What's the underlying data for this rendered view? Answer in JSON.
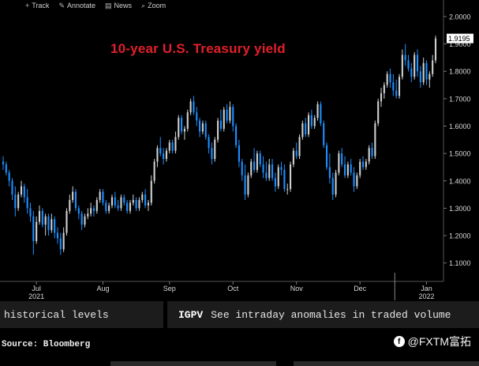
{
  "toolbar": {
    "items": [
      {
        "label": "Track",
        "icon": "plus-icon"
      },
      {
        "label": "Annotate",
        "icon": "pencil-icon"
      },
      {
        "label": "News",
        "icon": "news-icon"
      },
      {
        "label": "Zoom",
        "icon": "zoom-icon"
      }
    ]
  },
  "chart_data": {
    "type": "candlestick",
    "title": "10-year U.S. Treasury yield",
    "last_value_label": "1.9195",
    "ylim": [
      1.05,
      2.02
    ],
    "y_ticks": [
      "2.0000",
      "1.9000",
      "1.8000",
      "1.7000",
      "1.6000",
      "1.5000",
      "1.4000",
      "1.3000",
      "1.2000",
      "1.1000"
    ],
    "y_tick_values": [
      2.0,
      1.9,
      1.8,
      1.7,
      1.6,
      1.5,
      1.4,
      1.3,
      1.2,
      1.1
    ],
    "x_months": [
      {
        "label": "Jul",
        "year": "2021",
        "index": 11
      },
      {
        "label": "Aug",
        "index": 33
      },
      {
        "label": "Sep",
        "index": 55
      },
      {
        "label": "Oct",
        "index": 76
      },
      {
        "label": "Nov",
        "index": 97
      },
      {
        "label": "Dec",
        "index": 118
      },
      {
        "label": "Jan",
        "year": "2022",
        "index": 140
      }
    ],
    "x_dividers": [
      129
    ],
    "colors": {
      "up": "#cfcfcf",
      "down": "#1e8fff",
      "text_title": "#e0202a"
    },
    "ohlc": [
      [
        1.47,
        1.49,
        1.44,
        1.46
      ],
      [
        1.46,
        1.47,
        1.42,
        1.43
      ],
      [
        1.43,
        1.44,
        1.38,
        1.4
      ],
      [
        1.4,
        1.41,
        1.33,
        1.35
      ],
      [
        1.35,
        1.38,
        1.27,
        1.3
      ],
      [
        1.3,
        1.36,
        1.29,
        1.35
      ],
      [
        1.35,
        1.4,
        1.34,
        1.38
      ],
      [
        1.38,
        1.39,
        1.32,
        1.34
      ],
      [
        1.34,
        1.37,
        1.28,
        1.3
      ],
      [
        1.3,
        1.32,
        1.25,
        1.27
      ],
      [
        1.27,
        1.29,
        1.13,
        1.18
      ],
      [
        1.18,
        1.27,
        1.17,
        1.25
      ],
      [
        1.25,
        1.31,
        1.24,
        1.29
      ],
      [
        1.29,
        1.3,
        1.23,
        1.24
      ],
      [
        1.24,
        1.28,
        1.2,
        1.27
      ],
      [
        1.27,
        1.28,
        1.2,
        1.22
      ],
      [
        1.22,
        1.28,
        1.21,
        1.26
      ],
      [
        1.26,
        1.27,
        1.19,
        1.21
      ],
      [
        1.21,
        1.23,
        1.17,
        1.19
      ],
      [
        1.19,
        1.21,
        1.13,
        1.15
      ],
      [
        1.15,
        1.23,
        1.14,
        1.21
      ],
      [
        1.21,
        1.3,
        1.2,
        1.29
      ],
      [
        1.29,
        1.35,
        1.28,
        1.33
      ],
      [
        1.33,
        1.38,
        1.32,
        1.36
      ],
      [
        1.36,
        1.37,
        1.29,
        1.3
      ],
      [
        1.3,
        1.31,
        1.26,
        1.28
      ],
      [
        1.28,
        1.29,
        1.22,
        1.24
      ],
      [
        1.24,
        1.28,
        1.23,
        1.27
      ],
      [
        1.27,
        1.3,
        1.26,
        1.28
      ],
      [
        1.28,
        1.32,
        1.27,
        1.3
      ],
      [
        1.3,
        1.31,
        1.27,
        1.29
      ],
      [
        1.29,
        1.34,
        1.28,
        1.33
      ],
      [
        1.33,
        1.37,
        1.32,
        1.36
      ],
      [
        1.36,
        1.37,
        1.31,
        1.32
      ],
      [
        1.32,
        1.33,
        1.28,
        1.29
      ],
      [
        1.29,
        1.32,
        1.28,
        1.31
      ],
      [
        1.31,
        1.35,
        1.3,
        1.34
      ],
      [
        1.34,
        1.36,
        1.3,
        1.31
      ],
      [
        1.31,
        1.33,
        1.29,
        1.3
      ],
      [
        1.3,
        1.35,
        1.29,
        1.34
      ],
      [
        1.34,
        1.35,
        1.31,
        1.32
      ],
      [
        1.32,
        1.33,
        1.28,
        1.29
      ],
      [
        1.29,
        1.33,
        1.28,
        1.32
      ],
      [
        1.32,
        1.35,
        1.31,
        1.33
      ],
      [
        1.33,
        1.34,
        1.29,
        1.3
      ],
      [
        1.3,
        1.34,
        1.29,
        1.33
      ],
      [
        1.33,
        1.36,
        1.32,
        1.35
      ],
      [
        1.35,
        1.37,
        1.3,
        1.31
      ],
      [
        1.31,
        1.33,
        1.29,
        1.32
      ],
      [
        1.32,
        1.42,
        1.31,
        1.4
      ],
      [
        1.4,
        1.48,
        1.39,
        1.47
      ],
      [
        1.47,
        1.53,
        1.45,
        1.52
      ],
      [
        1.52,
        1.56,
        1.49,
        1.5
      ],
      [
        1.5,
        1.52,
        1.46,
        1.48
      ],
      [
        1.48,
        1.52,
        1.47,
        1.51
      ],
      [
        1.51,
        1.55,
        1.5,
        1.54
      ],
      [
        1.54,
        1.55,
        1.5,
        1.51
      ],
      [
        1.51,
        1.58,
        1.5,
        1.56
      ],
      [
        1.56,
        1.64,
        1.55,
        1.63
      ],
      [
        1.63,
        1.64,
        1.57,
        1.58
      ],
      [
        1.58,
        1.6,
        1.55,
        1.59
      ],
      [
        1.59,
        1.66,
        1.58,
        1.65
      ],
      [
        1.65,
        1.7,
        1.64,
        1.69
      ],
      [
        1.69,
        1.71,
        1.64,
        1.65
      ],
      [
        1.65,
        1.67,
        1.6,
        1.62
      ],
      [
        1.62,
        1.63,
        1.56,
        1.58
      ],
      [
        1.58,
        1.62,
        1.57,
        1.61
      ],
      [
        1.61,
        1.62,
        1.55,
        1.56
      ],
      [
        1.56,
        1.57,
        1.5,
        1.52
      ],
      [
        1.52,
        1.54,
        1.46,
        1.48
      ],
      [
        1.48,
        1.56,
        1.47,
        1.55
      ],
      [
        1.55,
        1.63,
        1.54,
        1.62
      ],
      [
        1.62,
        1.66,
        1.58,
        1.59
      ],
      [
        1.59,
        1.67,
        1.58,
        1.66
      ],
      [
        1.66,
        1.68,
        1.61,
        1.62
      ],
      [
        1.62,
        1.69,
        1.61,
        1.67
      ],
      [
        1.67,
        1.68,
        1.58,
        1.6
      ],
      [
        1.6,
        1.61,
        1.52,
        1.53
      ],
      [
        1.53,
        1.55,
        1.45,
        1.47
      ],
      [
        1.47,
        1.48,
        1.4,
        1.42
      ],
      [
        1.42,
        1.46,
        1.33,
        1.35
      ],
      [
        1.35,
        1.43,
        1.34,
        1.42
      ],
      [
        1.42,
        1.48,
        1.41,
        1.47
      ],
      [
        1.47,
        1.52,
        1.43,
        1.44
      ],
      [
        1.44,
        1.51,
        1.43,
        1.5
      ],
      [
        1.5,
        1.51,
        1.45,
        1.46
      ],
      [
        1.46,
        1.49,
        1.41,
        1.43
      ],
      [
        1.43,
        1.47,
        1.4,
        1.41
      ],
      [
        1.41,
        1.48,
        1.4,
        1.46
      ],
      [
        1.46,
        1.48,
        1.4,
        1.41
      ],
      [
        1.41,
        1.43,
        1.36,
        1.38
      ],
      [
        1.38,
        1.46,
        1.37,
        1.45
      ],
      [
        1.45,
        1.47,
        1.42,
        1.44
      ],
      [
        1.44,
        1.46,
        1.36,
        1.37
      ],
      [
        1.37,
        1.39,
        1.35,
        1.37
      ],
      [
        1.37,
        1.47,
        1.36,
        1.46
      ],
      [
        1.46,
        1.52,
        1.45,
        1.51
      ],
      [
        1.51,
        1.54,
        1.48,
        1.49
      ],
      [
        1.49,
        1.57,
        1.48,
        1.56
      ],
      [
        1.56,
        1.62,
        1.55,
        1.61
      ]
    ],
    "ohlc_tail": [
      [
        1.61,
        1.63,
        1.56,
        1.57
      ],
      [
        1.57,
        1.65,
        1.56,
        1.64
      ],
      [
        1.64,
        1.66,
        1.59,
        1.6
      ],
      [
        1.6,
        1.64,
        1.59,
        1.63
      ],
      [
        1.63,
        1.69,
        1.62,
        1.68
      ],
      [
        1.68,
        1.69,
        1.6,
        1.61
      ],
      [
        1.61,
        1.62,
        1.52,
        1.53
      ],
      [
        1.53,
        1.54,
        1.44,
        1.45
      ],
      [
        1.45,
        1.5,
        1.39,
        1.41
      ],
      [
        1.41,
        1.43,
        1.33,
        1.35
      ],
      [
        1.35,
        1.44,
        1.34,
        1.43
      ],
      [
        1.43,
        1.51,
        1.42,
        1.5
      ],
      [
        1.5,
        1.52,
        1.45,
        1.46
      ],
      [
        1.46,
        1.49,
        1.41,
        1.42
      ],
      [
        1.42,
        1.47,
        1.41,
        1.46
      ],
      [
        1.46,
        1.48,
        1.42,
        1.43
      ],
      [
        1.43,
        1.45,
        1.36,
        1.38
      ],
      [
        1.38,
        1.43,
        1.37,
        1.42
      ],
      [
        1.42,
        1.48,
        1.41,
        1.47
      ],
      [
        1.47,
        1.49,
        1.44,
        1.45
      ],
      [
        1.45,
        1.48,
        1.44,
        1.47
      ],
      [
        1.47,
        1.53,
        1.46,
        1.52
      ],
      [
        1.52,
        1.54,
        1.48,
        1.49
      ],
      [
        1.49,
        1.62,
        1.48,
        1.61
      ],
      [
        1.61,
        1.7,
        1.6,
        1.69
      ],
      [
        1.69,
        1.74,
        1.67,
        1.72
      ],
      [
        1.72,
        1.76,
        1.7,
        1.75
      ],
      [
        1.75,
        1.8,
        1.74,
        1.79
      ],
      [
        1.79,
        1.81,
        1.74,
        1.76
      ],
      [
        1.76,
        1.79,
        1.71,
        1.73
      ],
      [
        1.73,
        1.77,
        1.7,
        1.71
      ],
      [
        1.71,
        1.79,
        1.7,
        1.78
      ],
      [
        1.78,
        1.88,
        1.77,
        1.86
      ],
      [
        1.86,
        1.9,
        1.82,
        1.84
      ],
      [
        1.84,
        1.86,
        1.8,
        1.81
      ],
      [
        1.81,
        1.83,
        1.76,
        1.78
      ],
      [
        1.78,
        1.87,
        1.77,
        1.86
      ],
      [
        1.86,
        1.88,
        1.78,
        1.8
      ],
      [
        1.8,
        1.82,
        1.74,
        1.76
      ],
      [
        1.76,
        1.85,
        1.75,
        1.83
      ],
      [
        1.83,
        1.84,
        1.75,
        1.77
      ],
      [
        1.77,
        1.8,
        1.74,
        1.79
      ],
      [
        1.79,
        1.86,
        1.78,
        1.84
      ],
      [
        1.84,
        1.93,
        1.83,
        1.92
      ]
    ]
  },
  "strip": {
    "left_text": "historical levels",
    "right_code": "IGPV",
    "right_text": "See intraday anomalies in traded volume"
  },
  "source": "Source: Bloomberg",
  "brand": {
    "logo": "f",
    "text": "@FXTM富拓"
  }
}
